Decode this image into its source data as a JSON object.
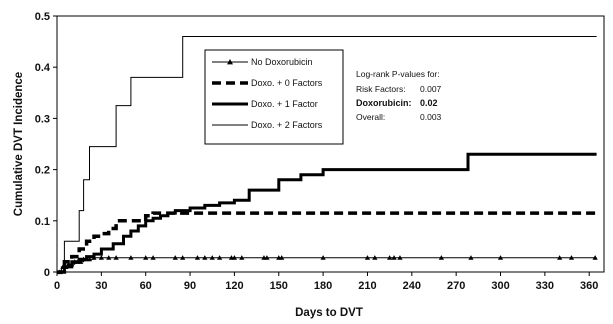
{
  "chart_data": {
    "type": "line",
    "title": "",
    "xlabel": "Days to DVT",
    "ylabel": "Cumulative DVT Incidence",
    "xlim": [
      0,
      370
    ],
    "ylim": [
      0,
      0.5
    ],
    "x_ticks": [
      0,
      30,
      60,
      90,
      120,
      150,
      180,
      210,
      240,
      270,
      300,
      330,
      360
    ],
    "y_ticks": [
      0,
      0.1,
      0.2,
      0.3,
      0.4,
      0.5
    ],
    "y_tick_labels": [
      "0",
      "0.1",
      "0.2",
      "0.3",
      "0.4",
      "0.5"
    ],
    "grid": false,
    "legend_position": "top-center",
    "series": [
      {
        "name": "No Doxorubicin",
        "style": "thin-triangle",
        "x": [
          0,
          3,
          7,
          12,
          18,
          25,
          365
        ],
        "y": [
          0,
          0.01,
          0.015,
          0.02,
          0.025,
          0.028,
          0.028
        ],
        "markers_x": [
          2,
          4,
          6,
          8,
          10,
          12,
          14,
          16,
          18,
          20,
          22,
          25,
          30,
          35,
          40,
          50,
          60,
          65,
          80,
          85,
          95,
          100,
          105,
          110,
          118,
          120,
          125,
          140,
          142,
          150,
          152,
          180,
          210,
          215,
          225,
          228,
          232,
          260,
          280,
          300,
          340,
          348,
          364
        ]
      },
      {
        "name": "Doxo. + 0 Factors",
        "style": "dashed",
        "x": [
          0,
          5,
          10,
          15,
          20,
          25,
          30,
          35,
          40,
          45,
          60,
          65,
          75,
          80,
          365
        ],
        "y": [
          0,
          0.02,
          0.03,
          0.045,
          0.06,
          0.07,
          0.075,
          0.085,
          0.1,
          0.1,
          0.11,
          0.115,
          0.115,
          0.115,
          0.115
        ]
      },
      {
        "name": "Doxo. + 1 Factor",
        "style": "thick",
        "x": [
          0,
          5,
          10,
          15,
          20,
          25,
          30,
          38,
          45,
          50,
          55,
          60,
          65,
          70,
          75,
          80,
          90,
          100,
          110,
          120,
          130,
          150,
          165,
          180,
          278,
          365
        ],
        "y": [
          0,
          0.01,
          0.02,
          0.025,
          0.03,
          0.035,
          0.045,
          0.055,
          0.07,
          0.08,
          0.09,
          0.1,
          0.105,
          0.11,
          0.115,
          0.12,
          0.125,
          0.13,
          0.135,
          0.14,
          0.16,
          0.18,
          0.19,
          0.2,
          0.23,
          0.23
        ]
      },
      {
        "name": "Doxo. + 2 Factors",
        "style": "thin",
        "x": [
          0,
          5,
          15,
          18,
          22,
          30,
          40,
          50,
          55,
          60,
          65,
          85,
          365
        ],
        "y": [
          0,
          0.06,
          0.12,
          0.18,
          0.245,
          0.245,
          0.325,
          0.38,
          0.38,
          0.38,
          0.38,
          0.46,
          0.46
        ]
      }
    ],
    "annotation": {
      "heading": "Log-rank P-values for:",
      "rows": [
        {
          "label": "Risk Factors:",
          "value": "0.007",
          "bold": false
        },
        {
          "label": "Doxorubicin:",
          "value": "0.02",
          "bold": true
        },
        {
          "label": "Overall:",
          "value": "0.003",
          "bold": false
        }
      ]
    }
  }
}
